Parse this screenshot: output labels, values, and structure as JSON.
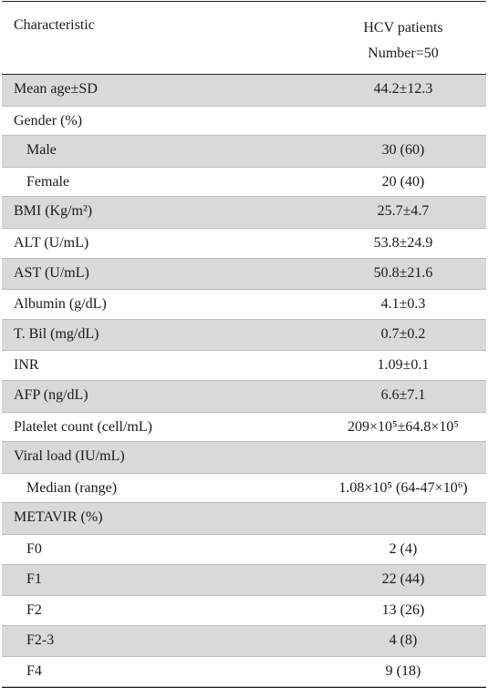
{
  "header": {
    "characteristic_label": "Characteristic",
    "group_label": "HCV patients",
    "group_number": "Number=50"
  },
  "rows": [
    {
      "label": "Mean age±SD",
      "value": "44.2±12.3",
      "indent": false
    },
    {
      "label": "Gender (%)",
      "value": "",
      "indent": false
    },
    {
      "label": "Male",
      "value": "30 (60)",
      "indent": true
    },
    {
      "label": "Female",
      "value": "20 (40)",
      "indent": true
    },
    {
      "label": "BMI (Kg/m²)",
      "value": "25.7±4.7",
      "indent": false
    },
    {
      "label": "ALT (U/mL)",
      "value": "53.8±24.9",
      "indent": false
    },
    {
      "label": "AST (U/mL)",
      "value": "50.8±21.6",
      "indent": false
    },
    {
      "label": "Albumin (g/dL)",
      "value": "4.1±0.3",
      "indent": false
    },
    {
      "label": "T. Bil (mg/dL)",
      "value": "0.7±0.2",
      "indent": false
    },
    {
      "label": "INR",
      "value": "1.09±0.1",
      "indent": false
    },
    {
      "label": "AFP (ng/dL)",
      "value": "6.6±7.1",
      "indent": false
    },
    {
      "label": "Platelet count (cell/mL)",
      "value": "209×10⁵±64.8×10⁵",
      "indent": false
    },
    {
      "label": "Viral load (IU/mL)",
      "value": "",
      "indent": false
    },
    {
      "label": "Median (range)",
      "value": "1.08×10⁵ (64-47×10⁶)",
      "indent": true
    },
    {
      "label": "METAVIR (%)",
      "value": "",
      "indent": false
    },
    {
      "label": "F0",
      "value": "2 (4)",
      "indent": true
    },
    {
      "label": "F1",
      "value": "22 (44)",
      "indent": true
    },
    {
      "label": "F2",
      "value": "13 (26)",
      "indent": true
    },
    {
      "label": "F2-3",
      "value": "4 (8)",
      "indent": true
    },
    {
      "label": "F4",
      "value": "9 (18)",
      "indent": true
    }
  ]
}
